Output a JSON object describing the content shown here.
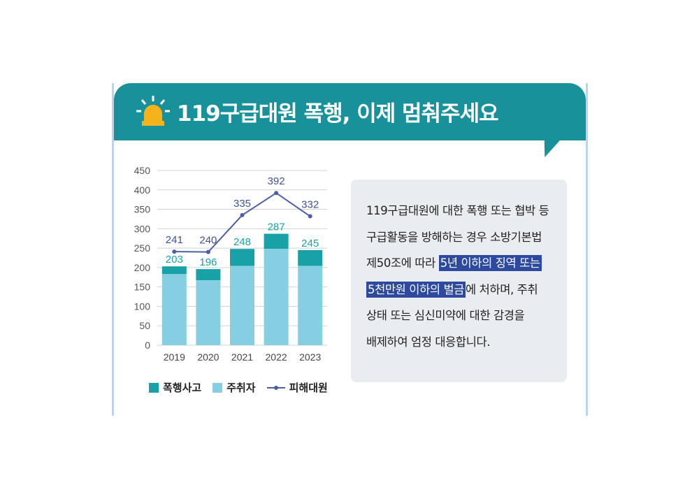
{
  "header": {
    "title": "119구급대원 폭행, 이제 멈춰주세요"
  },
  "colors": {
    "banner": "#19919a",
    "assault": "#18a2a7",
    "drunk": "#86cfe3",
    "line": "#4b5fa8",
    "highlight": "#2e4a9e"
  },
  "legend": {
    "assault": "폭행사고",
    "drunk": "주취자",
    "victims": "피해대원"
  },
  "chart_data": {
    "type": "bar",
    "categories": [
      "2019",
      "2020",
      "2021",
      "2022",
      "2023"
    ],
    "series": [
      {
        "name": "폭행사고",
        "values": [
          203,
          196,
          248,
          287,
          245
        ]
      },
      {
        "name": "주취자",
        "values": [
          183,
          167,
          204,
          248,
          204
        ]
      },
      {
        "name": "피해대원",
        "type": "line",
        "values": [
          241,
          240,
          335,
          392,
          332
        ]
      }
    ],
    "ylim": [
      0,
      450
    ],
    "yticks": [
      0,
      50,
      100,
      150,
      200,
      250,
      300,
      350,
      400,
      450
    ],
    "grid": true,
    "legend_position": "bottom"
  },
  "info": {
    "line1": "119구급대원에 대한 폭행 또는 협박 등",
    "line2": "구급활동을 방해하는 경우 소방기본법",
    "line3_pre": "제50조에 따라 ",
    "line3_hl": "5년 이하의 징역 또는",
    "line4_hl": "5천만원 이하의 벌금",
    "line4_post": "에 처하며, 주취",
    "line5": "상태 또는 심신미약에 대한 감경을",
    "line6": "배제하여 엄정 대응합니다."
  }
}
